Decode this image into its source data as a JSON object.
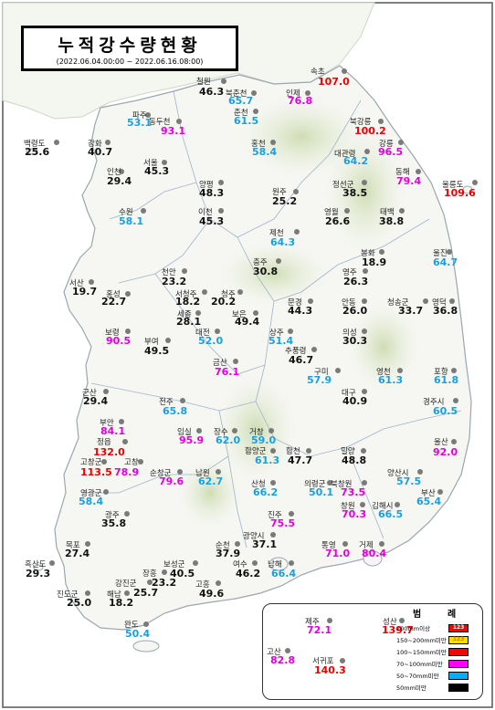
{
  "title": "누적강수량현황",
  "subtitle": "(2022.06.04.00:00 ~ 2022.06.16.08:00)",
  "legend": {
    "title_left": "범",
    "title_right": "례",
    "items": [
      {
        "label": "200mm이상",
        "color": "#ff0000",
        "swatch_text": "123",
        "text_color": "#ffffff"
      },
      {
        "label": "150~200mm미만",
        "color": "#ffdd00",
        "swatch_text": "123",
        "text_color": "#c08000"
      },
      {
        "label": "100~150mm미만",
        "color": "#ff0000",
        "swatch_text": "",
        "text_color": "#ffffff"
      },
      {
        "label": "70~100mm미만",
        "color": "#ff00ff",
        "swatch_text": "",
        "text_color": "#ffffff"
      },
      {
        "label": "50~70mm미만",
        "color": "#00b0f0",
        "swatch_text": "",
        "text_color": "#ffffff"
      },
      {
        "label": "50mm미만",
        "color": "#000000",
        "swatch_text": "",
        "text_color": "#ffffff"
      }
    ]
  },
  "colors": {
    "lt50": "#111111",
    "c50": "#1a9fe0",
    "c70": "#e000e0",
    "c100": "#ee0000",
    "c150": "#ffc000",
    "c200": "#ee0000"
  },
  "stations": [
    {
      "name": "속초",
      "value": "107.0",
      "cat": "c100"
    },
    {
      "name": "철원",
      "value": "46.3",
      "cat": "lt50"
    },
    {
      "name": "북춘천",
      "value": "65.7",
      "cat": "c50"
    },
    {
      "name": "인제",
      "value": "76.8",
      "cat": "c70"
    },
    {
      "name": "춘천",
      "value": "61.5",
      "cat": "c50"
    },
    {
      "name": "파주",
      "value": "53.1",
      "cat": "c50"
    },
    {
      "name": "동두천",
      "value": "93.1",
      "cat": "c70"
    },
    {
      "name": "북강릉",
      "value": "100.2",
      "cat": "c100"
    },
    {
      "name": "백령도",
      "value": "25.6",
      "cat": "lt50"
    },
    {
      "name": "강화",
      "value": "40.7",
      "cat": "lt50"
    },
    {
      "name": "홍천",
      "value": "58.4",
      "cat": "c50"
    },
    {
      "name": "강릉",
      "value": "96.5",
      "cat": "c70"
    },
    {
      "name": "대관령",
      "value": "64.2",
      "cat": "c50"
    },
    {
      "name": "서울",
      "value": "45.3",
      "cat": "lt50"
    },
    {
      "name": "인천",
      "value": "29.4",
      "cat": "lt50"
    },
    {
      "name": "동해",
      "value": "79.4",
      "cat": "c70"
    },
    {
      "name": "울릉도",
      "value": "109.6",
      "cat": "c100"
    },
    {
      "name": "양평",
      "value": "48.3",
      "cat": "lt50"
    },
    {
      "name": "정선군",
      "value": "38.5",
      "cat": "lt50"
    },
    {
      "name": "원주",
      "value": "25.2",
      "cat": "lt50"
    },
    {
      "name": "수원",
      "value": "58.1",
      "cat": "c50"
    },
    {
      "name": "이천",
      "value": "45.3",
      "cat": "lt50"
    },
    {
      "name": "영월",
      "value": "26.6",
      "cat": "lt50"
    },
    {
      "name": "태백",
      "value": "38.8",
      "cat": "lt50"
    },
    {
      "name": "제천",
      "value": "64.3",
      "cat": "c50"
    },
    {
      "name": "울진",
      "value": "64.7",
      "cat": "c50"
    },
    {
      "name": "봉화",
      "value": "18.9",
      "cat": "lt50"
    },
    {
      "name": "충주",
      "value": "30.8",
      "cat": "lt50"
    },
    {
      "name": "천안",
      "value": "23.2",
      "cat": "lt50"
    },
    {
      "name": "영주",
      "value": "26.3",
      "cat": "lt50"
    },
    {
      "name": "서산",
      "value": "19.7",
      "cat": "lt50"
    },
    {
      "name": "홍성",
      "value": "22.7",
      "cat": "lt50"
    },
    {
      "name": "서청주",
      "value": "18.2",
      "cat": "lt50"
    },
    {
      "name": "청주",
      "value": "20.2",
      "cat": "lt50"
    },
    {
      "name": "문경",
      "value": "44.3",
      "cat": "lt50"
    },
    {
      "name": "안동",
      "value": "26.0",
      "cat": "lt50"
    },
    {
      "name": "청송군",
      "value": "33.7",
      "cat": "lt50"
    },
    {
      "name": "영덕",
      "value": "36.8",
      "cat": "lt50"
    },
    {
      "name": "세종",
      "value": "28.1",
      "cat": "lt50"
    },
    {
      "name": "보은",
      "value": "49.4",
      "cat": "lt50"
    },
    {
      "name": "보령",
      "value": "90.5",
      "cat": "c70"
    },
    {
      "name": "대전",
      "value": "52.0",
      "cat": "c50"
    },
    {
      "name": "부여",
      "value": "49.5",
      "cat": "lt50"
    },
    {
      "name": "상주",
      "value": "51.4",
      "cat": "c50"
    },
    {
      "name": "의성",
      "value": "30.3",
      "cat": "lt50"
    },
    {
      "name": "추풍령",
      "value": "46.7",
      "cat": "lt50"
    },
    {
      "name": "금산",
      "value": "76.1",
      "cat": "c70"
    },
    {
      "name": "구미",
      "value": "57.9",
      "cat": "c50"
    },
    {
      "name": "영천",
      "value": "61.3",
      "cat": "c50"
    },
    {
      "name": "포항",
      "value": "61.8",
      "cat": "c50"
    },
    {
      "name": "군산",
      "value": "29.4",
      "cat": "lt50"
    },
    {
      "name": "대구",
      "value": "40.9",
      "cat": "lt50"
    },
    {
      "name": "전주",
      "value": "65.8",
      "cat": "c50"
    },
    {
      "name": "경주시",
      "value": "60.5",
      "cat": "c50"
    },
    {
      "name": "부안",
      "value": "84.1",
      "cat": "c70"
    },
    {
      "name": "임실",
      "value": "95.9",
      "cat": "c70"
    },
    {
      "name": "장수",
      "value": "62.0",
      "cat": "c50"
    },
    {
      "name": "거창",
      "value": "59.0",
      "cat": "c50"
    },
    {
      "name": "정읍",
      "value": "132.0",
      "cat": "c100"
    },
    {
      "name": "울산",
      "value": "92.0",
      "cat": "c70"
    },
    {
      "name": "함양군",
      "value": "61.3",
      "cat": "c50"
    },
    {
      "name": "합천",
      "value": "47.7",
      "cat": "lt50"
    },
    {
      "name": "밀양",
      "value": "48.8",
      "cat": "lt50"
    },
    {
      "name": "고창군",
      "value": "113.5",
      "cat": "c100"
    },
    {
      "name": "고창",
      "value": "78.9",
      "cat": "c70"
    },
    {
      "name": "순창군",
      "value": "79.6",
      "cat": "c70"
    },
    {
      "name": "남원",
      "value": "62.7",
      "cat": "c50"
    },
    {
      "name": "양산시",
      "value": "57.5",
      "cat": "c50"
    },
    {
      "name": "산청",
      "value": "66.2",
      "cat": "c50"
    },
    {
      "name": "의령군",
      "value": "50.1",
      "cat": "c50"
    },
    {
      "name": "북창원",
      "value": "73.5",
      "cat": "c70"
    },
    {
      "name": "영광군",
      "value": "58.4",
      "cat": "c50"
    },
    {
      "name": "부산",
      "value": "65.4",
      "cat": "c50"
    },
    {
      "name": "창원",
      "value": "70.3",
      "cat": "c70"
    },
    {
      "name": "김해시",
      "value": "66.5",
      "cat": "c50"
    },
    {
      "name": "광주",
      "value": "35.8",
      "cat": "lt50"
    },
    {
      "name": "진주",
      "value": "75.5",
      "cat": "c70"
    },
    {
      "name": "광양시",
      "value": "37.1",
      "cat": "lt50"
    },
    {
      "name": "목포",
      "value": "27.4",
      "cat": "lt50"
    },
    {
      "name": "통영",
      "value": "71.0",
      "cat": "c70"
    },
    {
      "name": "거제",
      "value": "80.4",
      "cat": "c70"
    },
    {
      "name": "순천",
      "value": "37.9",
      "cat": "lt50"
    },
    {
      "name": "보성군",
      "value": "40.5",
      "cat": "lt50"
    },
    {
      "name": "흑산도",
      "value": "29.3",
      "cat": "lt50"
    },
    {
      "name": "장흥",
      "value": "23.2",
      "cat": "lt50"
    },
    {
      "name": "여수",
      "value": "46.2",
      "cat": "lt50"
    },
    {
      "name": "남해",
      "value": "66.4",
      "cat": "c50"
    },
    {
      "name": "진도군",
      "value": "25.0",
      "cat": "lt50"
    },
    {
      "name": "강진군",
      "value": "25.7",
      "cat": "lt50"
    },
    {
      "name": "해남",
      "value": "18.2",
      "cat": "lt50"
    },
    {
      "name": "고흥",
      "value": "49.6",
      "cat": "lt50"
    },
    {
      "name": "완도",
      "value": "50.4",
      "cat": "c50"
    },
    {
      "name": "제주",
      "value": "72.1",
      "cat": "c70"
    },
    {
      "name": "성산",
      "value": "139.7",
      "cat": "c100"
    },
    {
      "name": "고산",
      "value": "82.8",
      "cat": "c70"
    },
    {
      "name": "서귀포",
      "value": "140.3",
      "cat": "c100"
    }
  ]
}
